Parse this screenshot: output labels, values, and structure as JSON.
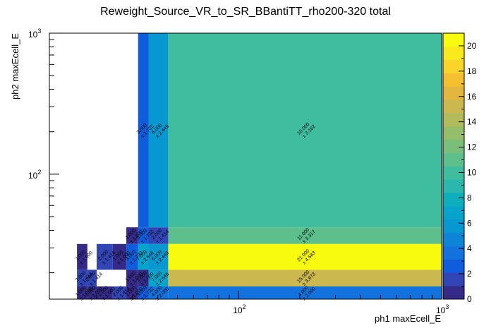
{
  "chart_data": {
    "type": "heatmap",
    "title": "Reweight_Source_VR_to_SR_BBantiTT_rho200-320 total",
    "xlabel": "ph1 maxEcell_E",
    "ylabel": "ph2 maxEcell_E",
    "x_scale": "log",
    "y_scale": "log",
    "xlim": [
      11.7,
      1000
    ],
    "ylim": [
      13,
      1000
    ],
    "x_ticks": [
      {
        "base": "10",
        "exp": "2",
        "value": 100
      },
      {
        "base": "10",
        "exp": "3",
        "value": 1000
      }
    ],
    "y_ticks": [
      {
        "base": "10",
        "exp": "2",
        "value": 100
      },
      {
        "base": "10",
        "exp": "3",
        "value": 1000
      }
    ],
    "z_range": [
      0,
      21
    ],
    "colorbar_ticks": [
      "0",
      "2",
      "4",
      "6",
      "8",
      "10",
      "12",
      "14",
      "16",
      "18",
      "20"
    ],
    "colors": [
      "#352a87",
      "#3145b6",
      "#0f5cdd",
      "#1272de",
      "#0d85d6",
      "#0898d1",
      "#06a4ca",
      "#0eafbc",
      "#2ab7ad",
      "#40bd9e",
      "#5cbf8c",
      "#79bf7a",
      "#95bd6a",
      "#b2bc5c",
      "#cbb950",
      "#e3b73f",
      "#f5bf30",
      "#f9d529",
      "#f9e91f",
      "#f9fb0e"
    ],
    "cells": [
      {
        "x": [
          45,
          1000
        ],
        "y": [
          42,
          1000
        ],
        "value": 10,
        "label": "10.000",
        "error": "± 3.162"
      },
      {
        "x": [
          36,
          45
        ],
        "y": [
          42,
          1000
        ],
        "value": 6,
        "label": "6.000",
        "error": "± 2.449"
      },
      {
        "x": [
          32,
          36
        ],
        "y": [
          42,
          1000
        ],
        "value": 3,
        "label": "3.000",
        "error": "± 1.732"
      },
      {
        "x": [
          45,
          1000
        ],
        "y": [
          32,
          42
        ],
        "value": 11,
        "label": "11.000",
        "error": "± 3.317"
      },
      {
        "x": [
          36,
          45
        ],
        "y": [
          32,
          42
        ],
        "value": 2,
        "label": "2.000",
        "error": "± 1.414"
      },
      {
        "x": [
          32,
          36
        ],
        "y": [
          32,
          42
        ],
        "value": 3,
        "label": "3.000",
        "error": "± 1.732"
      },
      {
        "x": [
          28,
          32
        ],
        "y": [
          32,
          42
        ],
        "value": 1,
        "label": "1.000",
        "error": "± 1.000"
      },
      {
        "x": [
          45,
          1000
        ],
        "y": [
          21,
          32
        ],
        "value": 21,
        "label": "21.000",
        "error": "± 4.583"
      },
      {
        "x": [
          36,
          45
        ],
        "y": [
          21,
          32
        ],
        "value": 6,
        "label": "6.000",
        "error": "± 2.449"
      },
      {
        "x": [
          32,
          36
        ],
        "y": [
          21,
          32
        ],
        "value": 7,
        "label": "7.000",
        "error": "± 2.646"
      },
      {
        "x": [
          28,
          32
        ],
        "y": [
          21,
          32
        ],
        "value": 3,
        "label": "3.000",
        "error": "± 1.732"
      },
      {
        "x": [
          24,
          28
        ],
        "y": [
          21,
          32
        ],
        "value": 1,
        "label": "1.000",
        "error": "± 1.000"
      },
      {
        "x": [
          20,
          24
        ],
        "y": [
          21,
          32
        ],
        "value": 2,
        "label": "2.000",
        "error": "± 1.414"
      },
      {
        "x": [
          16,
          18
        ],
        "y": [
          21,
          32
        ],
        "value": 1,
        "label": "1.000",
        "error": "± 1.000"
      },
      {
        "x": [
          45,
          1000
        ],
        "y": [
          16,
          21
        ],
        "value": 15,
        "label": "15.000",
        "error": "± 3.873"
      },
      {
        "x": [
          36,
          45
        ],
        "y": [
          16,
          21
        ],
        "value": 7,
        "label": "7.000",
        "error": "± 2.646"
      },
      {
        "x": [
          32,
          36
        ],
        "y": [
          16,
          21
        ],
        "value": 1,
        "label": "1.000",
        "error": "± 1.000"
      },
      {
        "x": [
          28,
          32
        ],
        "y": [
          16,
          21
        ],
        "value": 1,
        "label": "1.000",
        "error": "± 1.000"
      },
      {
        "x": [
          18,
          20
        ],
        "y": [
          16,
          21
        ],
        "value": 2,
        "label": "2.000",
        "error": "± 1.414"
      },
      {
        "x": [
          16,
          18
        ],
        "y": [
          16,
          21
        ],
        "value": 2,
        "label": "2.000",
        "error": "± 1.414"
      },
      {
        "x": [
          45,
          1000
        ],
        "y": [
          13,
          16
        ],
        "value": 4,
        "label": "4.000",
        "error": "± 2.000"
      },
      {
        "x": [
          36,
          45
        ],
        "y": [
          13,
          16
        ],
        "value": 4,
        "label": "4.000",
        "error": "± 2.000"
      },
      {
        "x": [
          32,
          36
        ],
        "y": [
          13,
          16
        ],
        "value": 3,
        "label": "3.000",
        "error": "± 1.732"
      },
      {
        "x": [
          28,
          32
        ],
        "y": [
          13,
          16
        ],
        "value": 1,
        "label": "1.000",
        "error": "± 1.000"
      },
      {
        "x": [
          24,
          28
        ],
        "y": [
          13,
          16
        ],
        "value": 2,
        "label": "2.000",
        "error": "± 1.414"
      },
      {
        "x": [
          20,
          24
        ],
        "y": [
          13,
          16
        ],
        "value": 1,
        "label": "1.000",
        "error": "± 1.000"
      },
      {
        "x": [
          18,
          20
        ],
        "y": [
          13,
          16
        ],
        "value": 1,
        "label": "1.000",
        "error": "± 1.000"
      },
      {
        "x": [
          16,
          18
        ],
        "y": [
          13,
          16
        ],
        "value": 1,
        "label": "1.000",
        "error": "± 1.000"
      }
    ]
  }
}
